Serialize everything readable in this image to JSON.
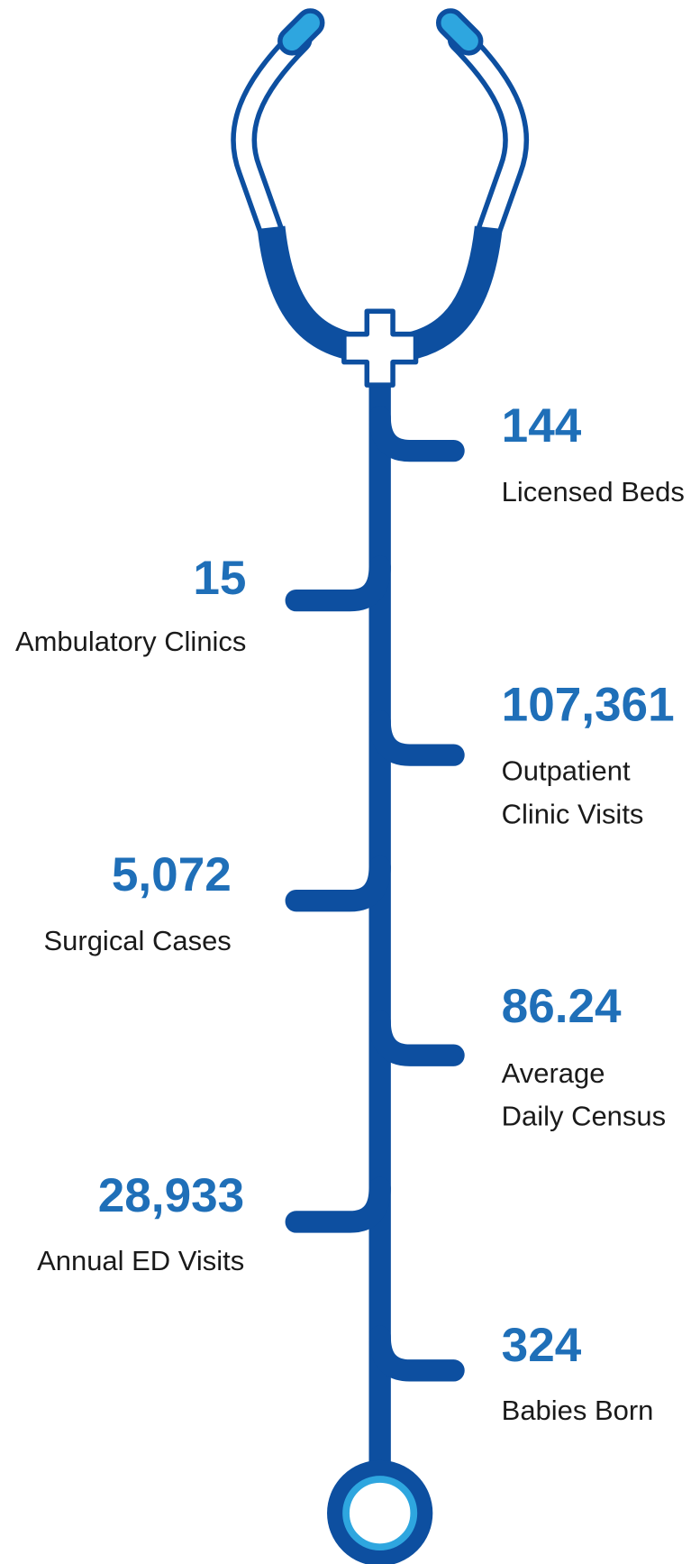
{
  "stats": [
    {
      "value": "144",
      "label": [
        "Licensed Beds"
      ]
    },
    {
      "value": "15",
      "label": [
        "Ambulatory Clinics"
      ]
    },
    {
      "value": "107,361",
      "label": [
        "Outpatient",
        "Clinic Visits"
      ]
    },
    {
      "value": "5,072",
      "label": [
        "Surgical Cases"
      ]
    },
    {
      "value": "86.24",
      "label": [
        "Average",
        "Daily Census"
      ]
    },
    {
      "value": "28,933",
      "label": [
        "Annual ED Visits"
      ]
    },
    {
      "value": "324",
      "label": [
        "Babies Born"
      ]
    }
  ]
}
